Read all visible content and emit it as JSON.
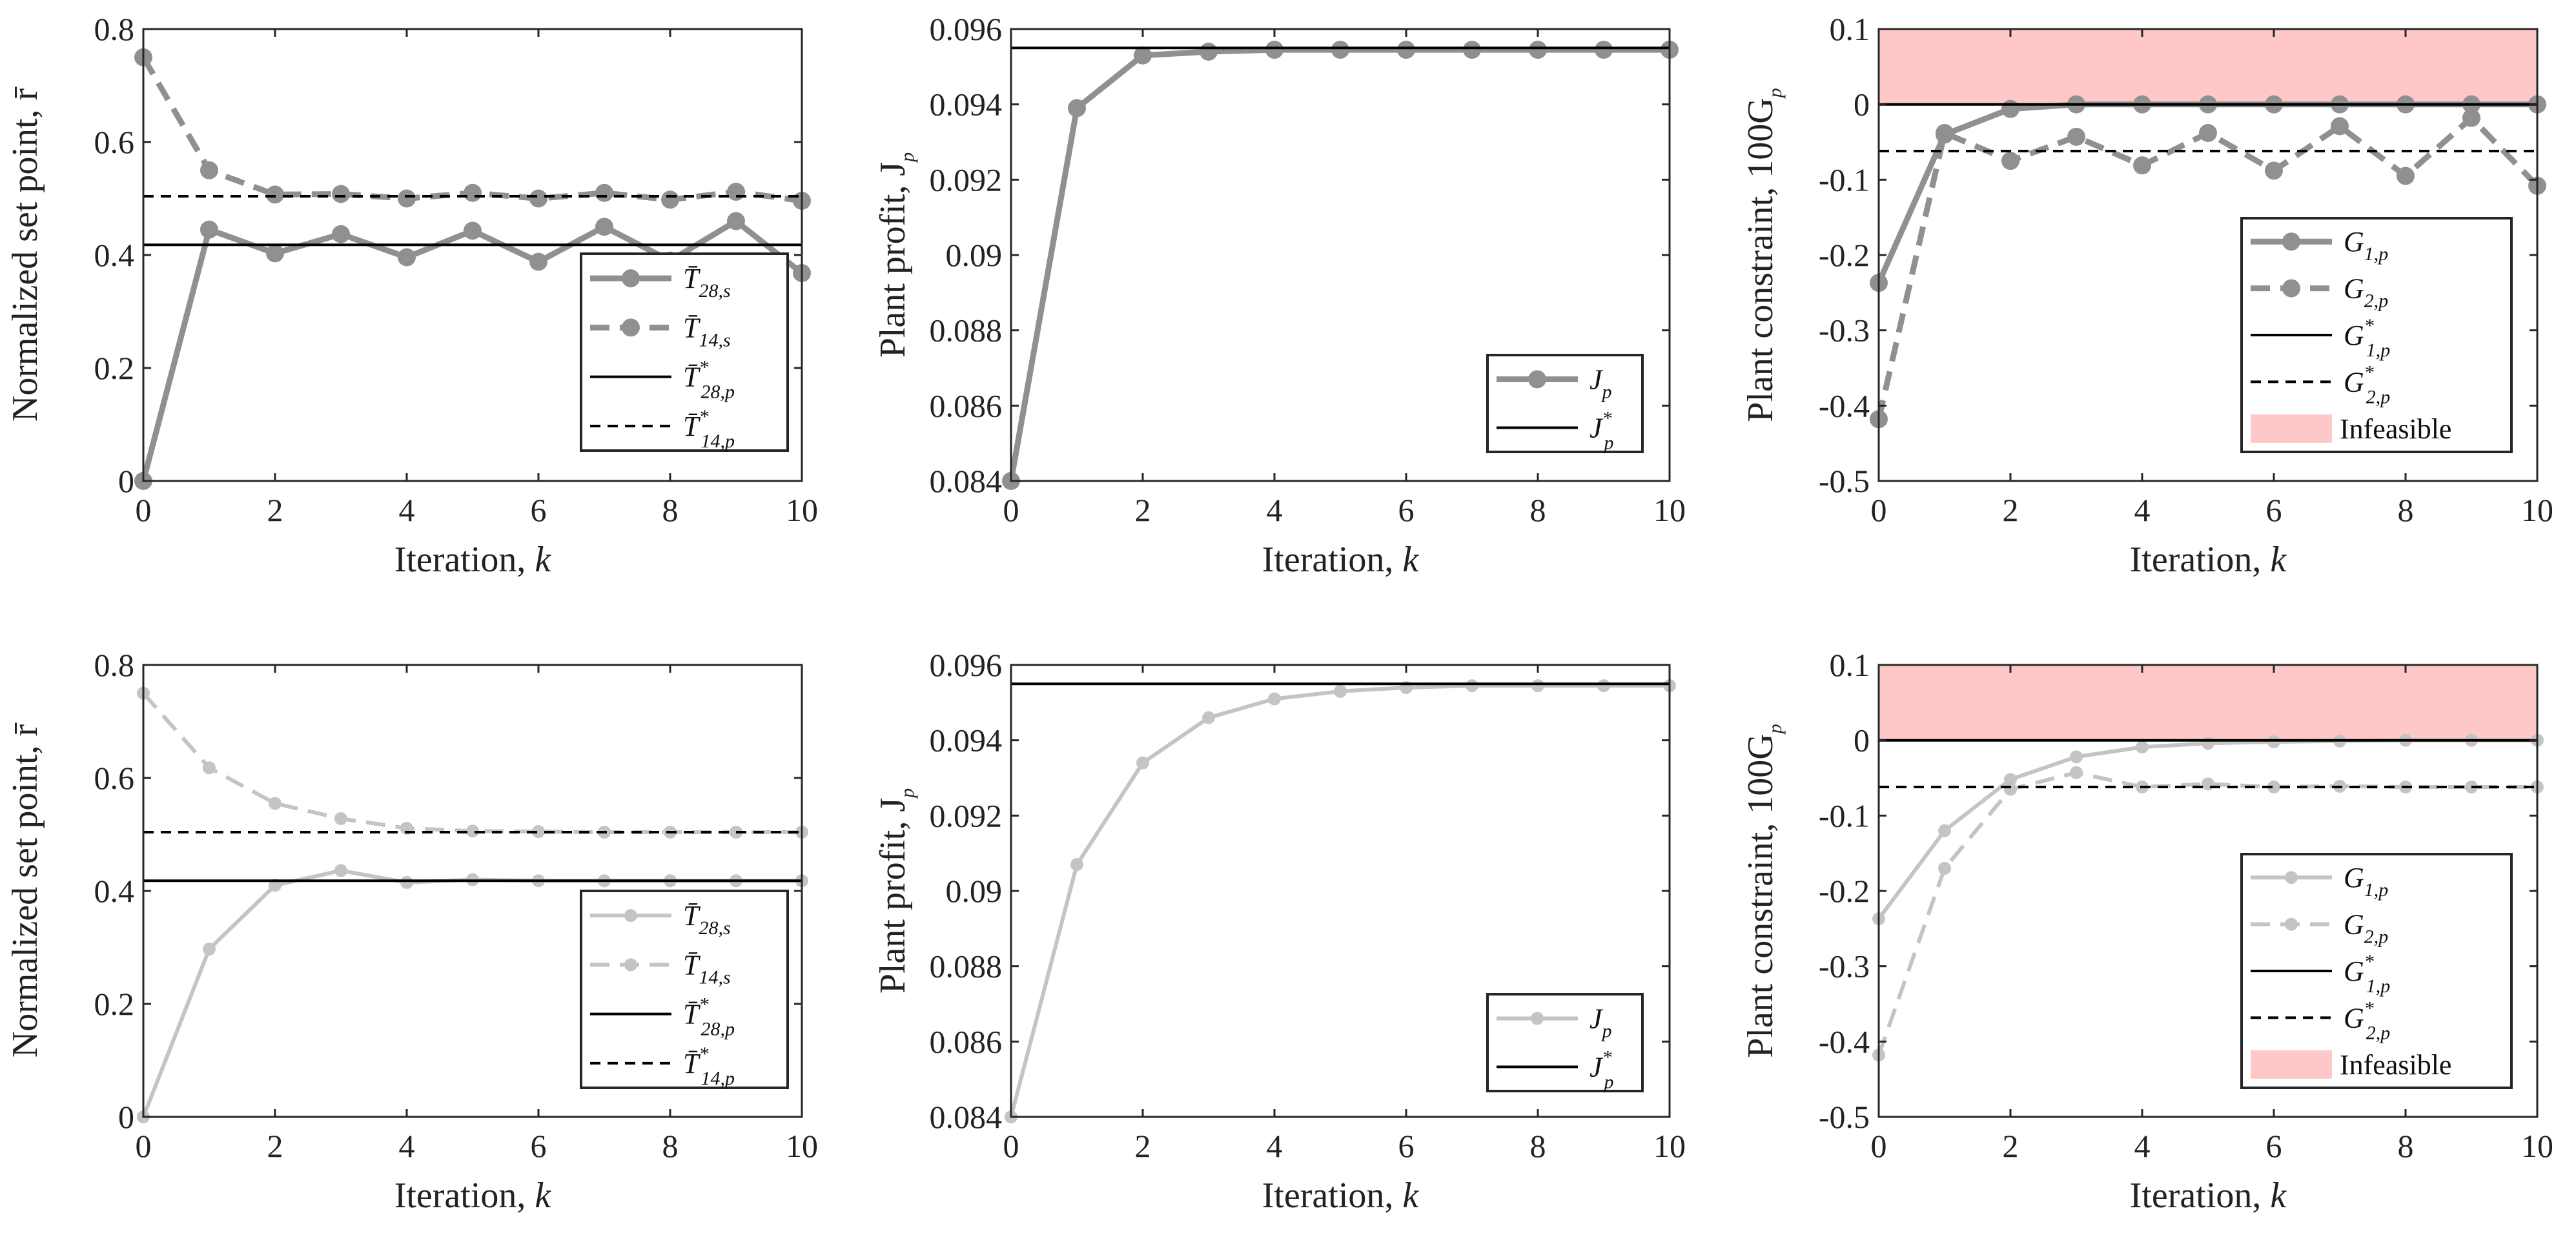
{
  "chart_data": [
    {
      "id": "r1c1",
      "type": "line",
      "xlabel": "Iteration, k",
      "ylabel": "Normalized set point, r̄",
      "xlim": [
        0,
        10
      ],
      "ylim": [
        0,
        0.8
      ],
      "xticks": [
        0,
        2,
        4,
        6,
        8,
        10
      ],
      "yticks": [
        0,
        0.2,
        0.4,
        0.6,
        0.8
      ],
      "xticklabels": [
        "0",
        "2",
        "4",
        "6",
        "8",
        "10"
      ],
      "yticklabels": [
        "0",
        "0.2",
        "0.4",
        "0.6",
        "0.8"
      ],
      "legend_position": "bottom-right",
      "band": null,
      "series": [
        {
          "name": "T̄",
          "sub": "28,s",
          "sup": "",
          "style": "solid-marker",
          "color": "#909090",
          "x": [
            0,
            1,
            2,
            3,
            4,
            5,
            6,
            7,
            8,
            9,
            10
          ],
          "values": [
            0,
            0.445,
            0.403,
            0.437,
            0.396,
            0.443,
            0.388,
            0.45,
            0.39,
            0.46,
            0.368
          ]
        },
        {
          "name": "T̄",
          "sub": "14,s",
          "sup": "",
          "style": "dashed-marker",
          "color": "#909090",
          "x": [
            0,
            1,
            2,
            3,
            4,
            5,
            6,
            7,
            8,
            9,
            10
          ],
          "values": [
            0.75,
            0.55,
            0.507,
            0.508,
            0.5,
            0.51,
            0.5,
            0.51,
            0.498,
            0.512,
            0.496
          ]
        },
        {
          "name": "T̄",
          "sub": "28,p",
          "sup": "*",
          "style": "solid-ref",
          "color": "#000000",
          "x": [
            0,
            10
          ],
          "values": [
            0.418,
            0.418
          ]
        },
        {
          "name": "T̄",
          "sub": "14,p",
          "sup": "*",
          "style": "dashed-ref",
          "color": "#000000",
          "x": [
            0,
            10
          ],
          "values": [
            0.504,
            0.504
          ]
        }
      ]
    },
    {
      "id": "r1c2",
      "type": "line",
      "xlabel": "Iteration, k",
      "ylabel": "Plant profit, J",
      "xlim": [
        0,
        10
      ],
      "ylim": [
        0.084,
        0.096
      ],
      "xticks": [
        0,
        2,
        4,
        6,
        8,
        10
      ],
      "yticks": [
        0.084,
        0.086,
        0.088,
        0.09,
        0.092,
        0.094,
        0.096
      ],
      "xticklabels": [
        "0",
        "2",
        "4",
        "6",
        "8",
        "10"
      ],
      "yticklabels": [
        "0.084",
        "0.086",
        "0.088",
        "0.09",
        "0.092",
        "0.094",
        "0.096"
      ],
      "legend_position": "bottom-right",
      "band": null,
      "series": [
        {
          "name": "J",
          "sub": "p",
          "sup": "",
          "style": "solid-marker",
          "color": "#909090",
          "x": [
            0,
            1,
            2,
            3,
            4,
            5,
            6,
            7,
            8,
            9,
            10
          ],
          "values": [
            0.084,
            0.0939,
            0.0953,
            0.0954,
            0.09545,
            0.09545,
            0.09545,
            0.09545,
            0.09545,
            0.09545,
            0.09545
          ]
        },
        {
          "name": "J",
          "sub": "p",
          "sup": "*",
          "style": "solid-ref",
          "color": "#000000",
          "x": [
            0,
            10
          ],
          "values": [
            0.0955,
            0.0955
          ]
        }
      ]
    },
    {
      "id": "r1c3",
      "type": "line",
      "xlabel": "Iteration, k",
      "ylabel": "Plant constraint, 100G",
      "xlim": [
        0,
        10
      ],
      "ylim": [
        -0.5,
        0.1
      ],
      "xticks": [
        0,
        2,
        4,
        6,
        8,
        10
      ],
      "yticks": [
        -0.5,
        -0.4,
        -0.3,
        -0.2,
        -0.1,
        0,
        0.1
      ],
      "xticklabels": [
        "0",
        "2",
        "4",
        "6",
        "8",
        "10"
      ],
      "yticklabels": [
        "-0.5",
        "-0.4",
        "-0.3",
        "-0.2",
        "-0.1",
        "0",
        "0.1"
      ],
      "legend_position": "bottom-right",
      "band": {
        "from": 0,
        "to": 0.1,
        "color": "#ffc8c8",
        "label": "Infeasible"
      },
      "series": [
        {
          "name": "G",
          "sub": "1,p",
          "sup": "",
          "style": "solid-marker",
          "color": "#909090",
          "x": [
            0,
            1,
            2,
            3,
            4,
            5,
            6,
            7,
            8,
            9,
            10
          ],
          "values": [
            -0.237,
            -0.04,
            -0.006,
            0,
            0,
            0,
            0,
            0,
            0,
            0,
            0
          ]
        },
        {
          "name": "G",
          "sub": "2,p",
          "sup": "",
          "style": "dashed-marker",
          "color": "#909090",
          "x": [
            0,
            1,
            2,
            3,
            4,
            5,
            6,
            7,
            8,
            9,
            10
          ],
          "values": [
            -0.418,
            -0.038,
            -0.075,
            -0.043,
            -0.081,
            -0.038,
            -0.088,
            -0.029,
            -0.095,
            -0.018,
            -0.108
          ]
        },
        {
          "name": "G",
          "sub": "1,p",
          "sup": "*",
          "style": "solid-ref",
          "color": "#000000",
          "x": [
            0,
            10
          ],
          "values": [
            0,
            0
          ]
        },
        {
          "name": "G",
          "sub": "2,p",
          "sup": "*",
          "style": "dashed-ref",
          "color": "#000000",
          "x": [
            0,
            10
          ],
          "values": [
            -0.062,
            -0.062
          ]
        }
      ]
    },
    {
      "id": "r2c1",
      "type": "line",
      "xlabel": "Iteration, k",
      "ylabel": "Normalized set point, r̄",
      "xlim": [
        0,
        10
      ],
      "ylim": [
        0,
        0.8
      ],
      "xticks": [
        0,
        2,
        4,
        6,
        8,
        10
      ],
      "yticks": [
        0,
        0.2,
        0.4,
        0.6,
        0.8
      ],
      "xticklabels": [
        "0",
        "2",
        "4",
        "6",
        "8",
        "10"
      ],
      "yticklabels": [
        "0",
        "0.2",
        "0.4",
        "0.6",
        "0.8"
      ],
      "legend_position": "bottom-right",
      "band": null,
      "series": [
        {
          "name": "T̄",
          "sub": "28,s",
          "sup": "",
          "style": "solid-small",
          "color": "#c4c4c4",
          "x": [
            0,
            1,
            2,
            3,
            4,
            5,
            6,
            7,
            8,
            9,
            10
          ],
          "values": [
            0,
            0.297,
            0.41,
            0.436,
            0.415,
            0.42,
            0.418,
            0.418,
            0.418,
            0.418,
            0.418
          ]
        },
        {
          "name": "T̄",
          "sub": "14,s",
          "sup": "",
          "style": "dashed-small",
          "color": "#c4c4c4",
          "x": [
            0,
            1,
            2,
            3,
            4,
            5,
            6,
            7,
            8,
            9,
            10
          ],
          "values": [
            0.75,
            0.618,
            0.555,
            0.528,
            0.511,
            0.506,
            0.505,
            0.504,
            0.504,
            0.504,
            0.504
          ]
        },
        {
          "name": "T̄",
          "sub": "28,p",
          "sup": "*",
          "style": "solid-ref",
          "color": "#000000",
          "x": [
            0,
            10
          ],
          "values": [
            0.418,
            0.418
          ]
        },
        {
          "name": "T̄",
          "sub": "14,p",
          "sup": "*",
          "style": "dashed-ref",
          "color": "#000000",
          "x": [
            0,
            10
          ],
          "values": [
            0.504,
            0.504
          ]
        }
      ]
    },
    {
      "id": "r2c2",
      "type": "line",
      "xlabel": "Iteration, k",
      "ylabel": "Plant profit, J",
      "xlim": [
        0,
        10
      ],
      "ylim": [
        0.084,
        0.096
      ],
      "xticks": [
        0,
        2,
        4,
        6,
        8,
        10
      ],
      "yticks": [
        0.084,
        0.086,
        0.088,
        0.09,
        0.092,
        0.094,
        0.096
      ],
      "xticklabels": [
        "0",
        "2",
        "4",
        "6",
        "8",
        "10"
      ],
      "yticklabels": [
        "0.084",
        "0.086",
        "0.088",
        "0.09",
        "0.092",
        "0.094",
        "0.096"
      ],
      "legend_position": "bottom-right",
      "band": null,
      "series": [
        {
          "name": "J",
          "sub": "p",
          "sup": "",
          "style": "solid-small",
          "color": "#c4c4c4",
          "x": [
            0,
            1,
            2,
            3,
            4,
            5,
            6,
            7,
            8,
            9,
            10
          ],
          "values": [
            0.084,
            0.0907,
            0.0934,
            0.0946,
            0.0951,
            0.0953,
            0.0954,
            0.09545,
            0.09545,
            0.09545,
            0.09545
          ]
        },
        {
          "name": "J",
          "sub": "p",
          "sup": "*",
          "style": "solid-ref",
          "color": "#000000",
          "x": [
            0,
            10
          ],
          "values": [
            0.0955,
            0.0955
          ]
        }
      ]
    },
    {
      "id": "r2c3",
      "type": "line",
      "xlabel": "Iteration, k",
      "ylabel": "Plant constraint, 100G",
      "xlim": [
        0,
        10
      ],
      "ylim": [
        -0.5,
        0.1
      ],
      "xticks": [
        0,
        2,
        4,
        6,
        8,
        10
      ],
      "yticks": [
        -0.5,
        -0.4,
        -0.3,
        -0.2,
        -0.1,
        0,
        0.1
      ],
      "xticklabels": [
        "0",
        "2",
        "4",
        "6",
        "8",
        "10"
      ],
      "yticklabels": [
        "-0.5",
        "-0.4",
        "-0.3",
        "-0.2",
        "-0.1",
        "0",
        "0.1"
      ],
      "legend_position": "bottom-right",
      "band": {
        "from": 0,
        "to": 0.1,
        "color": "#ffc8c8",
        "label": "Infeasible"
      },
      "series": [
        {
          "name": "G",
          "sub": "1,p",
          "sup": "",
          "style": "solid-small",
          "color": "#c4c4c4",
          "x": [
            0,
            1,
            2,
            3,
            4,
            5,
            6,
            7,
            8,
            9,
            10
          ],
          "values": [
            -0.237,
            -0.12,
            -0.052,
            -0.022,
            -0.009,
            -0.004,
            -0.002,
            -0.001,
            0,
            0,
            0
          ]
        },
        {
          "name": "G",
          "sub": "2,p",
          "sup": "",
          "style": "dashed-small",
          "color": "#c4c4c4",
          "x": [
            0,
            1,
            2,
            3,
            4,
            5,
            6,
            7,
            8,
            9,
            10
          ],
          "values": [
            -0.418,
            -0.17,
            -0.065,
            -0.043,
            -0.062,
            -0.058,
            -0.062,
            -0.061,
            -0.062,
            -0.062,
            -0.062
          ]
        },
        {
          "name": "G",
          "sub": "1,p",
          "sup": "*",
          "style": "solid-ref",
          "color": "#000000",
          "x": [
            0,
            10
          ],
          "values": [
            0,
            0
          ]
        },
        {
          "name": "G",
          "sub": "2,p",
          "sup": "*",
          "style": "dashed-ref",
          "color": "#000000",
          "x": [
            0,
            10
          ],
          "values": [
            -0.062,
            -0.062
          ]
        }
      ]
    }
  ],
  "ylabel_suffixes": {
    "r1c1": "",
    "r1c2": "p",
    "r1c3": "p",
    "r2c1": "",
    "r2c2": "p",
    "r2c3": "p"
  }
}
